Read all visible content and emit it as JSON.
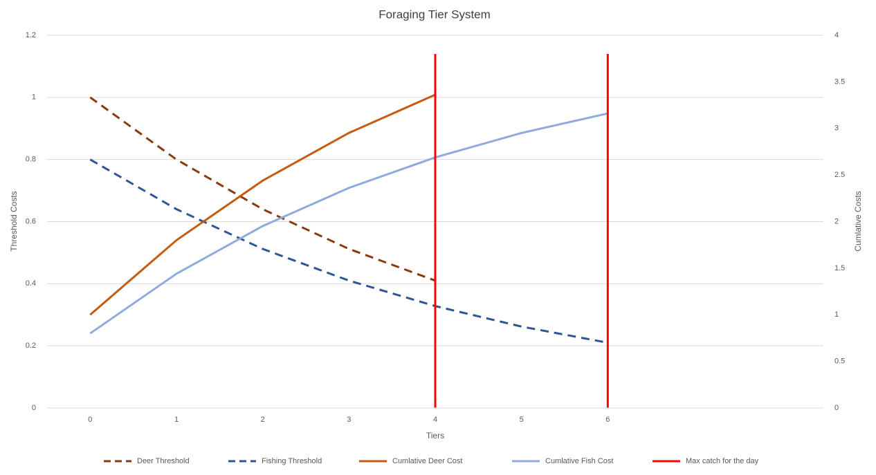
{
  "chart_data": {
    "type": "line",
    "title": "Foraging Tier System",
    "x_label": "Tiers",
    "y_label": "Threshold Costs",
    "y2_label": "Cumlative Costs",
    "categories": [
      "0",
      "1",
      "2",
      "3",
      "4",
      "5",
      "6",
      null,
      null
    ],
    "ylim": [
      0,
      1.2
    ],
    "yticks": [
      0,
      0.2,
      0.4,
      0.6,
      0.8,
      1,
      1.2
    ],
    "y2lim": [
      0,
      4
    ],
    "y2ticks": [
      0,
      0.5,
      1,
      1.5,
      2,
      2.5,
      3,
      3.5,
      4
    ],
    "grid": true,
    "legend": "bottom",
    "series": [
      {
        "name": "Deer Threshold",
        "color": "#8b3a0f",
        "dash": true,
        "values": [
          1,
          0.8,
          0.64,
          0.512,
          0.41,
          null,
          null,
          null,
          null
        ]
      },
      {
        "name": "Fishing Threshold",
        "color": "#2f5597",
        "dash": true,
        "values": [
          0.8,
          0.64,
          0.512,
          0.41,
          0.328,
          0.262,
          0.21,
          null,
          null
        ]
      },
      {
        "name": "Cumlative Deer Cost",
        "color": "#c55a11",
        "axis": "y2",
        "values": [
          1,
          1.8,
          2.44,
          2.952,
          3.362,
          null,
          null,
          null,
          null
        ]
      },
      {
        "name": "Cumlative Fish Cost",
        "color": "#8faadc",
        "axis": "y2",
        "values": [
          0.8,
          1.44,
          1.952,
          2.362,
          2.689,
          2.951,
          3.161,
          null,
          null
        ]
      },
      {
        "name": "Max catch for the day",
        "color": "#ff0000",
        "axis": "y2",
        "vertical": true,
        "x": [
          4,
          6
        ],
        "values": [
          3.8,
          3.8
        ]
      }
    ]
  }
}
